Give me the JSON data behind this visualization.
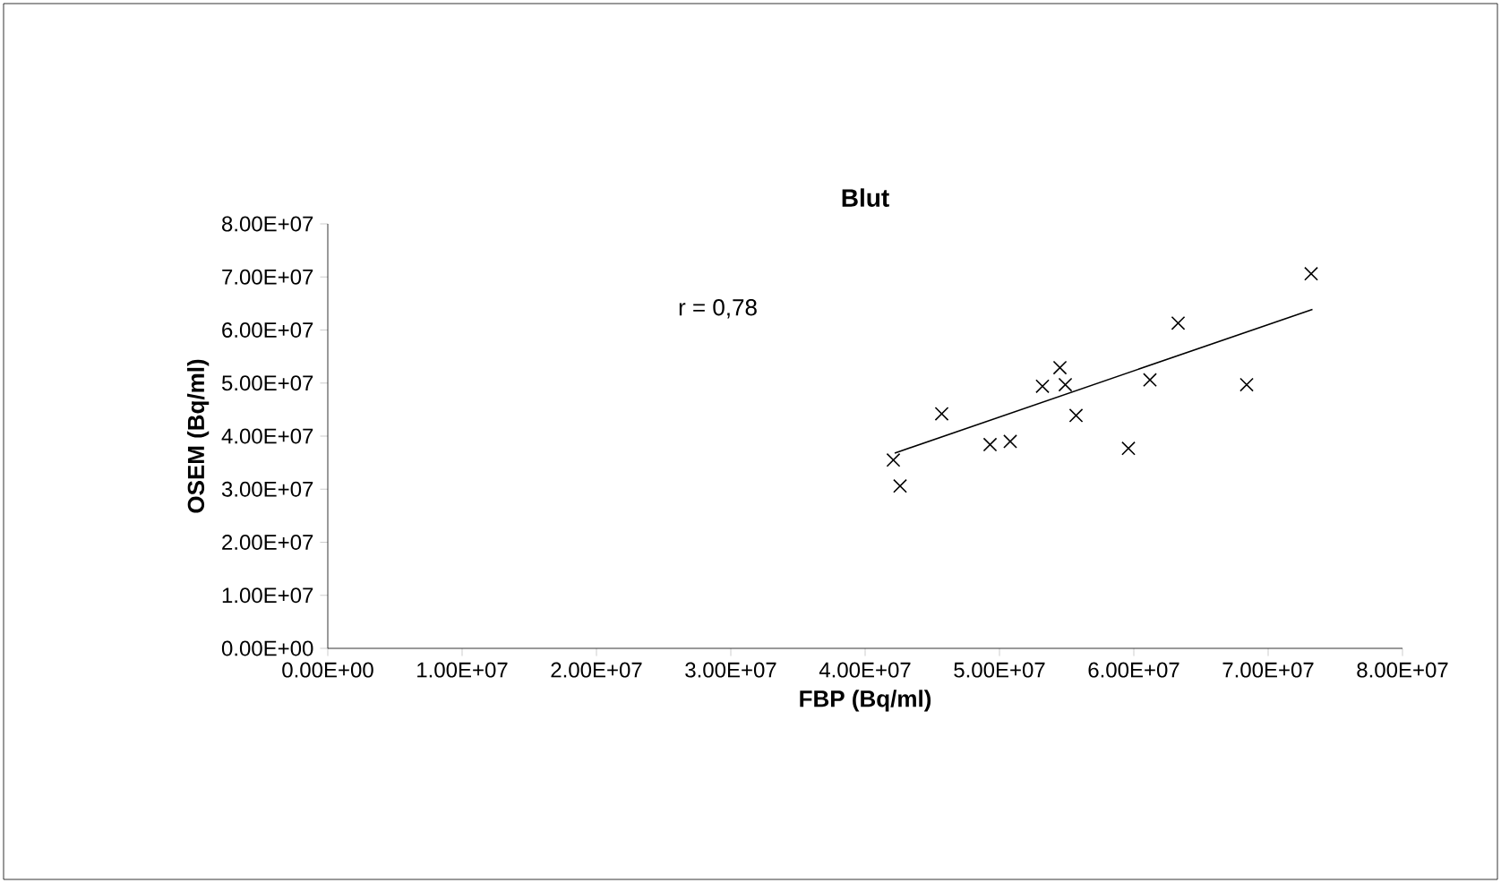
{
  "chart_data": {
    "type": "scatter",
    "title": "Blut",
    "xlabel": "FBP (Bq/ml)",
    "ylabel": "OSEM (Bq/ml)",
    "annotations": [
      "r = 0,78"
    ],
    "marker": "cross",
    "xlim": [
      0,
      80000000
    ],
    "ylim": [
      0,
      80000000
    ],
    "xticks": [
      {
        "value": 0,
        "label": "0.00E+00"
      },
      {
        "value": 10000000,
        "label": "1.00E+07"
      },
      {
        "value": 20000000,
        "label": "2.00E+07"
      },
      {
        "value": 30000000,
        "label": "3.00E+07"
      },
      {
        "value": 40000000,
        "label": "4.00E+07"
      },
      {
        "value": 50000000,
        "label": "5.00E+07"
      },
      {
        "value": 60000000,
        "label": "6.00E+07"
      },
      {
        "value": 70000000,
        "label": "7.00E+07"
      },
      {
        "value": 80000000,
        "label": "8.00E+07"
      }
    ],
    "yticks": [
      {
        "value": 0,
        "label": "0.00E+00"
      },
      {
        "value": 10000000,
        "label": "1.00E+07"
      },
      {
        "value": 20000000,
        "label": "2.00E+07"
      },
      {
        "value": 30000000,
        "label": "3.00E+07"
      },
      {
        "value": 40000000,
        "label": "4.00E+07"
      },
      {
        "value": 50000000,
        "label": "5.00E+07"
      },
      {
        "value": 60000000,
        "label": "6.00E+07"
      },
      {
        "value": 70000000,
        "label": "7.00E+07"
      },
      {
        "value": 80000000,
        "label": "8.00E+07"
      }
    ],
    "series": [
      {
        "color": "#000000",
        "x": [
          42100000,
          42600000,
          45700000,
          49300000,
          50800000,
          53200000,
          54500000,
          54900000,
          55700000,
          59600000,
          61200000,
          63300000,
          68400000,
          73200000
        ],
        "values": [
          35500000,
          30600000,
          44200000,
          38400000,
          39000000,
          49400000,
          52900000,
          49700000,
          43900000,
          37700000,
          50600000,
          61300000,
          49700000,
          70600000
        ]
      },
      {
        "type": "line",
        "color": "#000000",
        "marker": "none",
        "x": [
          42200000,
          73300000
        ],
        "values": [
          36800000,
          63900000
        ]
      }
    ]
  }
}
